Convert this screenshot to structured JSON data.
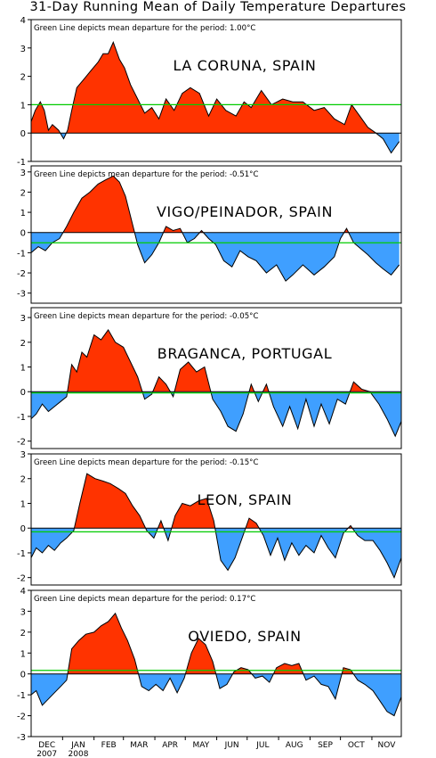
{
  "page": {
    "title": "31-Day Running Mean of Daily Temperature Departures"
  },
  "colors": {
    "positive_fill": "#ff3300",
    "negative_fill": "#3f9fff",
    "mean_line": "#00cc00",
    "frame": "#000000"
  },
  "x_axis": {
    "month_labels": [
      "DEC",
      "JAN",
      "FEB",
      "MAR",
      "APR",
      "MAY",
      "JUN",
      "JUL",
      "AUG",
      "SEP",
      "OCT",
      "NOV"
    ],
    "year_labels": [
      {
        "month": "DEC",
        "year": "2007"
      },
      {
        "month": "JAN",
        "year": "2008"
      }
    ],
    "start": "2007-12-01",
    "end": "2008-11-30"
  },
  "chart_data": [
    {
      "type": "area",
      "station": "LA CORUNA, SPAIN",
      "note": "Green Line depicts mean departure for the period: 1.00°C",
      "mean_departure": 1.0,
      "ylim": [
        -1,
        4
      ],
      "yticks": [
        -1,
        0,
        1,
        2,
        3,
        4
      ],
      "x": [
        "2007-12-01",
        "2007-12-05",
        "2007-12-10",
        "2007-12-14",
        "2007-12-18",
        "2007-12-22",
        "2007-12-28",
        "2008-01-02",
        "2008-01-06",
        "2008-01-10",
        "2008-01-15",
        "2008-01-22",
        "2008-01-29",
        "2008-02-05",
        "2008-02-10",
        "2008-02-15",
        "2008-02-20",
        "2008-02-26",
        "2008-03-02",
        "2008-03-08",
        "2008-03-15",
        "2008-03-22",
        "2008-03-29",
        "2008-04-05",
        "2008-04-12",
        "2008-04-20",
        "2008-04-28",
        "2008-05-06",
        "2008-05-15",
        "2008-05-24",
        "2008-06-01",
        "2008-06-10",
        "2008-06-20",
        "2008-06-28",
        "2008-07-05",
        "2008-07-15",
        "2008-07-25",
        "2008-08-05",
        "2008-08-15",
        "2008-08-25",
        "2008-09-05",
        "2008-09-15",
        "2008-09-25",
        "2008-10-05",
        "2008-10-12",
        "2008-10-20",
        "2008-10-28",
        "2008-11-05",
        "2008-11-12",
        "2008-11-20",
        "2008-11-28"
      ],
      "y": [
        0.4,
        0.8,
        1.1,
        0.8,
        0.1,
        0.3,
        0.1,
        -0.2,
        0.1,
        0.8,
        1.6,
        1.9,
        2.2,
        2.5,
        2.8,
        2.8,
        3.2,
        2.6,
        2.3,
        1.7,
        1.2,
        0.7,
        0.9,
        0.5,
        1.2,
        0.8,
        1.4,
        1.6,
        1.4,
        0.6,
        1.2,
        0.8,
        0.6,
        1.1,
        0.9,
        1.5,
        1.0,
        1.2,
        1.1,
        1.1,
        0.8,
        0.9,
        0.5,
        0.3,
        1.0,
        0.6,
        0.2,
        0.0,
        -0.2,
        -0.7,
        -0.3
      ]
    },
    {
      "type": "area",
      "station": "VIGO/PEINADOR, SPAIN",
      "note": "Green Line depicts mean departure for the period: -0.51°C",
      "mean_departure": -0.51,
      "ylim": [
        -3.5,
        3.3
      ],
      "yticks": [
        -3,
        -2,
        -1,
        0,
        1,
        2,
        3
      ],
      "x": [
        "2007-12-01",
        "2007-12-08",
        "2007-12-15",
        "2007-12-22",
        "2007-12-29",
        "2008-01-05",
        "2008-01-12",
        "2008-01-20",
        "2008-01-28",
        "2008-02-05",
        "2008-02-12",
        "2008-02-20",
        "2008-02-26",
        "2008-03-03",
        "2008-03-08",
        "2008-03-15",
        "2008-03-22",
        "2008-03-29",
        "2008-04-05",
        "2008-04-12",
        "2008-04-19",
        "2008-04-26",
        "2008-05-03",
        "2008-05-10",
        "2008-05-17",
        "2008-05-24",
        "2008-05-31",
        "2008-06-08",
        "2008-06-16",
        "2008-06-24",
        "2008-07-02",
        "2008-07-10",
        "2008-07-20",
        "2008-07-30",
        "2008-08-08",
        "2008-08-15",
        "2008-08-25",
        "2008-09-05",
        "2008-09-15",
        "2008-09-25",
        "2008-10-01",
        "2008-10-07",
        "2008-10-14",
        "2008-10-21",
        "2008-10-28",
        "2008-11-05",
        "2008-11-12",
        "2008-11-20",
        "2008-11-28"
      ],
      "y": [
        -1.0,
        -0.7,
        -0.9,
        -0.5,
        -0.3,
        0.3,
        1.0,
        1.7,
        2.0,
        2.4,
        2.6,
        2.8,
        2.5,
        1.8,
        0.8,
        -0.6,
        -1.5,
        -1.1,
        -0.5,
        0.3,
        0.1,
        0.2,
        -0.5,
        -0.3,
        0.1,
        -0.3,
        -0.6,
        -1.4,
        -1.7,
        -0.9,
        -1.2,
        -1.4,
        -2.0,
        -1.6,
        -2.4,
        -2.1,
        -1.6,
        -2.1,
        -1.7,
        -1.2,
        -0.3,
        0.2,
        -0.5,
        -0.8,
        -1.1,
        -1.5,
        -1.8,
        -2.1,
        -1.6
      ]
    },
    {
      "type": "area",
      "station": "BRAGANCA, PORTUGAL",
      "note": "Green Line depicts mean departure for the period: -0.05°C",
      "mean_departure": -0.05,
      "ylim": [
        -2.3,
        3.4
      ],
      "yticks": [
        -2,
        -1,
        0,
        1,
        2,
        3
      ],
      "x": [
        "2007-12-01",
        "2007-12-06",
        "2007-12-12",
        "2007-12-18",
        "2007-12-24",
        "2007-12-30",
        "2008-01-05",
        "2008-01-10",
        "2008-01-15",
        "2008-01-20",
        "2008-01-25",
        "2008-02-01",
        "2008-02-08",
        "2008-02-15",
        "2008-02-22",
        "2008-03-01",
        "2008-03-08",
        "2008-03-15",
        "2008-03-22",
        "2008-03-29",
        "2008-04-05",
        "2008-04-12",
        "2008-04-19",
        "2008-04-26",
        "2008-05-04",
        "2008-05-12",
        "2008-05-20",
        "2008-05-28",
        "2008-06-05",
        "2008-06-12",
        "2008-06-20",
        "2008-06-27",
        "2008-07-05",
        "2008-07-12",
        "2008-07-20",
        "2008-07-27",
        "2008-08-05",
        "2008-08-12",
        "2008-08-20",
        "2008-08-28",
        "2008-09-05",
        "2008-09-12",
        "2008-09-20",
        "2008-09-28",
        "2008-10-06",
        "2008-10-14",
        "2008-10-22",
        "2008-10-30",
        "2008-11-08",
        "2008-11-16",
        "2008-11-24",
        "2008-11-30"
      ],
      "y": [
        -1.1,
        -0.9,
        -0.5,
        -0.8,
        -0.6,
        -0.4,
        -0.2,
        1.1,
        0.8,
        1.6,
        1.4,
        2.3,
        2.1,
        2.5,
        2.0,
        1.8,
        1.2,
        0.6,
        -0.3,
        -0.1,
        0.6,
        0.3,
        -0.2,
        0.9,
        1.2,
        0.8,
        1.0,
        -0.3,
        -0.8,
        -1.4,
        -1.6,
        -0.9,
        0.3,
        -0.4,
        0.3,
        -0.6,
        -1.4,
        -0.6,
        -1.5,
        -0.3,
        -1.4,
        -0.5,
        -1.3,
        -0.3,
        -0.5,
        0.4,
        0.1,
        0.0,
        -0.5,
        -1.1,
        -1.8,
        -1.2
      ]
    },
    {
      "type": "area",
      "station": "LEON, SPAIN",
      "note": "Green Line depicts mean departure for the period: -0.15°C",
      "mean_departure": -0.15,
      "ylim": [
        -2.3,
        3.0
      ],
      "yticks": [
        -2,
        -1,
        0,
        1,
        2,
        3
      ],
      "x": [
        "2007-12-01",
        "2007-12-06",
        "2007-12-12",
        "2007-12-18",
        "2007-12-24",
        "2007-12-30",
        "2008-01-05",
        "2008-01-12",
        "2008-01-18",
        "2008-01-25",
        "2008-02-02",
        "2008-02-10",
        "2008-02-17",
        "2008-02-25",
        "2008-03-03",
        "2008-03-10",
        "2008-03-17",
        "2008-03-24",
        "2008-03-31",
        "2008-04-07",
        "2008-04-14",
        "2008-04-21",
        "2008-04-28",
        "2008-05-06",
        "2008-05-14",
        "2008-05-22",
        "2008-05-29",
        "2008-06-05",
        "2008-06-12",
        "2008-06-19",
        "2008-06-26",
        "2008-07-03",
        "2008-07-10",
        "2008-07-17",
        "2008-07-24",
        "2008-07-31",
        "2008-08-07",
        "2008-08-14",
        "2008-08-21",
        "2008-08-28",
        "2008-09-05",
        "2008-09-12",
        "2008-09-19",
        "2008-09-26",
        "2008-10-04",
        "2008-10-11",
        "2008-10-18",
        "2008-10-25",
        "2008-11-02",
        "2008-11-09",
        "2008-11-16",
        "2008-11-23",
        "2008-11-30"
      ],
      "y": [
        -1.2,
        -0.8,
        -1.0,
        -0.7,
        -0.9,
        -0.6,
        -0.4,
        -0.1,
        1.0,
        2.2,
        2.0,
        1.9,
        1.8,
        1.6,
        1.4,
        0.9,
        0.5,
        -0.1,
        -0.4,
        0.3,
        -0.5,
        0.5,
        1.0,
        0.9,
        1.1,
        1.2,
        0.3,
        -1.3,
        -1.7,
        -1.2,
        -0.4,
        0.4,
        0.2,
        -0.3,
        -1.1,
        -0.4,
        -1.3,
        -0.6,
        -1.1,
        -0.7,
        -1.0,
        -0.3,
        -0.8,
        -1.2,
        -0.2,
        0.1,
        -0.3,
        -0.5,
        -0.5,
        -0.9,
        -1.4,
        -2.0,
        -1.2
      ]
    },
    {
      "type": "area",
      "station": "OVIEDO, SPAIN",
      "note": "Green Line depicts mean departure for the period: 0.17°C",
      "mean_departure": 0.17,
      "ylim": [
        -3,
        4
      ],
      "yticks": [
        -3,
        -2,
        -1,
        0,
        1,
        2,
        3,
        4
      ],
      "x": [
        "2007-12-01",
        "2007-12-06",
        "2007-12-12",
        "2007-12-18",
        "2007-12-24",
        "2007-12-30",
        "2008-01-05",
        "2008-01-10",
        "2008-01-17",
        "2008-01-24",
        "2008-02-01",
        "2008-02-08",
        "2008-02-15",
        "2008-02-22",
        "2008-02-28",
        "2008-03-05",
        "2008-03-12",
        "2008-03-19",
        "2008-03-26",
        "2008-04-02",
        "2008-04-09",
        "2008-04-16",
        "2008-04-23",
        "2008-04-30",
        "2008-05-07",
        "2008-05-14",
        "2008-05-21",
        "2008-05-28",
        "2008-06-04",
        "2008-06-11",
        "2008-06-18",
        "2008-06-25",
        "2008-07-02",
        "2008-07-09",
        "2008-07-16",
        "2008-07-23",
        "2008-07-30",
        "2008-08-07",
        "2008-08-14",
        "2008-08-21",
        "2008-08-28",
        "2008-09-05",
        "2008-09-12",
        "2008-09-19",
        "2008-09-26",
        "2008-10-04",
        "2008-10-11",
        "2008-10-18",
        "2008-10-25",
        "2008-11-02",
        "2008-11-09",
        "2008-11-16",
        "2008-11-23",
        "2008-11-30"
      ],
      "y": [
        -1.0,
        -0.8,
        -1.5,
        -1.2,
        -0.9,
        -0.6,
        -0.3,
        1.2,
        1.6,
        1.9,
        2.0,
        2.3,
        2.5,
        2.9,
        2.2,
        1.6,
        0.7,
        -0.6,
        -0.8,
        -0.5,
        -0.8,
        -0.2,
        -0.9,
        -0.2,
        1.0,
        1.7,
        1.4,
        0.6,
        -0.7,
        -0.5,
        0.1,
        0.3,
        0.2,
        -0.2,
        -0.1,
        -0.4,
        0.3,
        0.5,
        0.4,
        0.5,
        -0.3,
        -0.1,
        -0.5,
        -0.6,
        -1.2,
        0.3,
        0.2,
        -0.3,
        -0.5,
        -0.8,
        -1.3,
        -1.8,
        -2.0,
        -1.1
      ]
    }
  ]
}
